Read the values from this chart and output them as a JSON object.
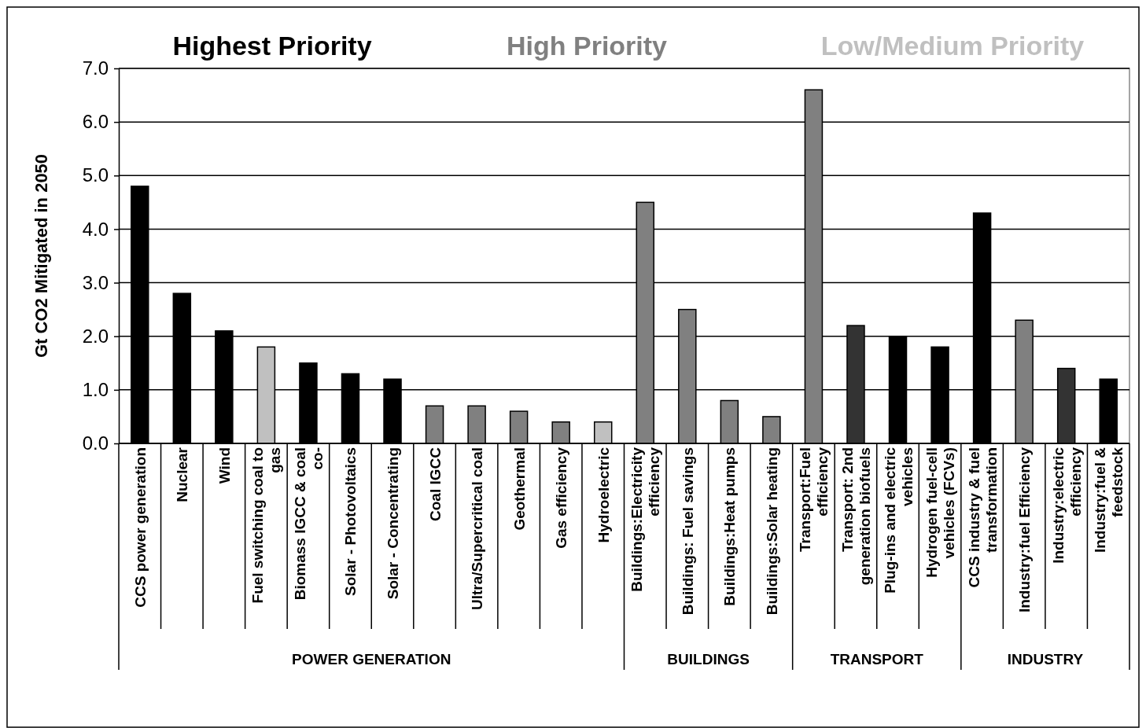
{
  "chart_data": {
    "type": "bar",
    "ylabel": "Gt CO2 Mitigated in 2050",
    "categories": [
      "CCS power generation",
      "Nuclear",
      "Wind",
      "Fuel switching coal to gas",
      "Biomass IGCC & coal co-",
      "Solar - Photovoltaics",
      "Solar - Concentrating",
      "Coal IGCC",
      "Ultra/Supercritical coal",
      "Geothermal",
      "Gas efficiency",
      "Hydroelectric",
      "Buildings:Electricity efficiency",
      "Buildings: Fuel savings",
      "Buildings:Heat pumps",
      "Buildings:Solar heating",
      "Transport:Fuel efficiency",
      "Transport: 2nd generation biofuels",
      "Plug-ins and electric vehicles",
      "Hydrogen fuel-cell vehicles (FCVs)",
      "CCS industry & fuel transformation",
      "Industry:fuel Efficiency",
      "Industry:electric efficiency",
      "Industry:fuel & feedstock"
    ],
    "values": [
      4.8,
      2.8,
      2.1,
      1.8,
      1.5,
      1.3,
      1.2,
      0.7,
      0.7,
      0.6,
      0.4,
      0.4,
      4.5,
      2.5,
      0.8,
      0.5,
      6.6,
      2.2,
      2.0,
      1.8,
      4.3,
      2.3,
      1.4,
      1.2
    ],
    "colors": [
      "#000000",
      "#000000",
      "#000000",
      "#c0c0c0",
      "#000000",
      "#000000",
      "#000000",
      "#808080",
      "#808080",
      "#808080",
      "#808080",
      "#c0c0c0",
      "#808080",
      "#808080",
      "#808080",
      "#808080",
      "#808080",
      "#333333",
      "#000000",
      "#000000",
      "#000000",
      "#808080",
      "#333333",
      "#000000"
    ],
    "ylim": [
      0,
      7
    ],
    "yticks": [
      {
        "value": 0,
        "label": "0.0"
      },
      {
        "value": 1,
        "label": "1.0"
      },
      {
        "value": 2,
        "label": "2.0"
      },
      {
        "value": 3,
        "label": "3.0"
      },
      {
        "value": 4,
        "label": "4.0"
      },
      {
        "value": 5,
        "label": "5.0"
      },
      {
        "value": 6,
        "label": "6.0"
      },
      {
        "value": 7,
        "label": "7.0"
      }
    ],
    "grid": "y",
    "annotations": [
      "Highest Priority",
      "High Priority",
      "Low/Medium Priority",
      "POWER GENERATION",
      "BUILDINGS",
      "TRANSPORT",
      "INDUSTRY"
    ]
  }
}
